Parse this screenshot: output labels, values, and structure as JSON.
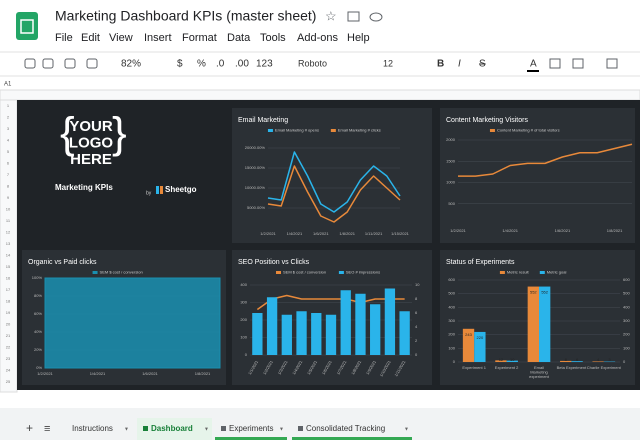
{
  "app": {
    "title": "Marketing Dashboard KPIs (master sheet)",
    "menu": [
      "File",
      "Edit",
      "View",
      "Insert",
      "Format",
      "Data",
      "Tools",
      "Add-ons",
      "Help"
    ],
    "toolbar": [
      "82%",
      "$",
      "%",
      ".0",
      ".00",
      "123",
      "Roboto",
      "12",
      "B",
      "I",
      "S",
      "A"
    ],
    "cell": "A1",
    "rows": [
      1,
      2,
      3,
      4,
      5,
      6,
      7,
      8,
      9,
      10,
      11,
      12,
      13,
      14,
      15,
      16,
      17,
      18,
      19,
      20,
      21,
      22,
      23,
      24,
      25
    ],
    "tabs": [
      "Instructions",
      "Dashboard",
      "Experiments",
      "Consolidated Tracking"
    ]
  },
  "logo": {
    "lines": [
      "YOUR",
      "LOGO",
      "HERE"
    ],
    "heading": "Marketing KPIs",
    "by": "by",
    "brand": "Sheetgo"
  },
  "chart_data": [
    {
      "type": "line",
      "title": "Email Marketing",
      "categories": [
        "1/2/2021",
        null,
        "1/4/2021",
        null,
        "1/6/2021",
        null,
        "1/8/2021",
        null,
        "1/11/2021",
        null,
        "1/15/2021"
      ],
      "series": [
        {
          "name": "Email Marketing # opens",
          "color": "#2ab4ea",
          "values": [
            7500,
            7000,
            19000,
            13000,
            6000,
            4000,
            6500,
            12000,
            15500,
            13000,
            8000
          ]
        },
        {
          "name": "Email Marketing # clicks",
          "color": "#e8893a",
          "values": [
            6000,
            5500,
            15500,
            9000,
            3000,
            1500,
            4000,
            9500,
            13000,
            10000,
            7000
          ]
        }
      ],
      "ylim": [
        0,
        22000
      ],
      "yticks": [
        {
          "value": 5000,
          "label": "5000.00%"
        },
        {
          "value": 10000,
          "label": "10000.00%"
        },
        {
          "value": 15000,
          "label": "15000.00%"
        },
        {
          "value": 20000,
          "label": "20000.00%"
        }
      ],
      "grid": true
    },
    {
      "type": "line",
      "title": "Content Marketing Visitors",
      "categories": [
        "1/2/2021",
        null,
        null,
        "1/4/2021",
        null,
        null,
        "1/6/2021",
        null,
        null,
        "1/8/2021",
        null
      ],
      "series": [
        {
          "name": "Content Marketing # of total visitors",
          "color": "#e8893a",
          "values": [
            1150,
            1150,
            1200,
            1400,
            1450,
            1450,
            1600,
            1700,
            1700,
            1800,
            1900
          ]
        }
      ],
      "ylim": [
        0,
        2000
      ],
      "yticks": [
        500,
        1000,
        1500,
        2000
      ],
      "grid": true
    },
    {
      "type": "area",
      "title": "Organic vs Paid clicks",
      "categories": [
        "1/2/2021",
        null,
        null,
        "1/4/2021",
        null,
        null,
        "1/6/2021",
        null,
        null,
        "1/8/2021",
        null
      ],
      "series": [
        {
          "name": "SEM $ cost / conversion",
          "color": "#1a8fb0",
          "values": [
            100,
            100,
            100,
            100,
            100,
            100,
            100,
            100,
            100,
            100,
            100
          ]
        }
      ],
      "ylim": [
        0,
        100
      ],
      "yticks": [
        {
          "value": 0,
          "label": "0%"
        },
        {
          "value": 20,
          "label": "20%"
        },
        {
          "value": 40,
          "label": "40%"
        },
        {
          "value": 60,
          "label": "60%"
        },
        {
          "value": 80,
          "label": "80%"
        },
        {
          "value": 100,
          "label": "100%"
        }
      ],
      "grid": true
    },
    {
      "type": "bar",
      "title": "SEO Position vs Clicks",
      "categories": [
        "1/1/2021",
        "1/2/2021",
        "1/3/2021",
        "1/4/2021",
        "1/5/2021",
        "1/6/2021",
        "1/7/2021",
        "1/8/2021",
        "1/9/2021",
        "1/10/2021",
        "1/11/2021"
      ],
      "series": [
        {
          "name": "SEM $ cost / conversion",
          "color": "#e8893a",
          "type": "line",
          "axis": "y2",
          "values": [
            6.5,
            8,
            8.5,
            8,
            8,
            8,
            8,
            7.5,
            8,
            8,
            8
          ]
        },
        {
          "name": "SEO # impressions",
          "color": "#2ab4ea",
          "values": [
            240,
            330,
            230,
            250,
            240,
            230,
            370,
            350,
            290,
            380,
            250
          ]
        }
      ],
      "ylim": [
        0,
        400
      ],
      "yticks": [
        0,
        100,
        200,
        300,
        400
      ],
      "y2lim": [
        0,
        10
      ],
      "y2ticks": [
        0,
        2,
        4,
        6,
        8,
        10
      ],
      "grid": true
    },
    {
      "type": "bar",
      "title": "Status of Experiments",
      "categories": [
        "Experiment 1",
        "Experiment 2",
        "Email Marketing experiment",
        "Beta Experiment",
        "Charlie Experiment"
      ],
      "series": [
        {
          "name": "Metric result",
          "color": "#e8893a",
          "values": [
            243,
            12,
            552,
            8,
            4
          ]
        },
        {
          "name": "Metric goal",
          "color": "#2ab4ea",
          "values": [
            220,
            10,
            552,
            6,
            3
          ]
        }
      ],
      "ylim": [
        0,
        600
      ],
      "yticks": [
        0,
        100,
        200,
        300,
        400,
        500,
        600
      ],
      "y2lim": [
        0,
        600
      ],
      "y2ticks": [
        0,
        100,
        200,
        300,
        400,
        500,
        600
      ],
      "data_labels": true,
      "grid": true
    }
  ]
}
